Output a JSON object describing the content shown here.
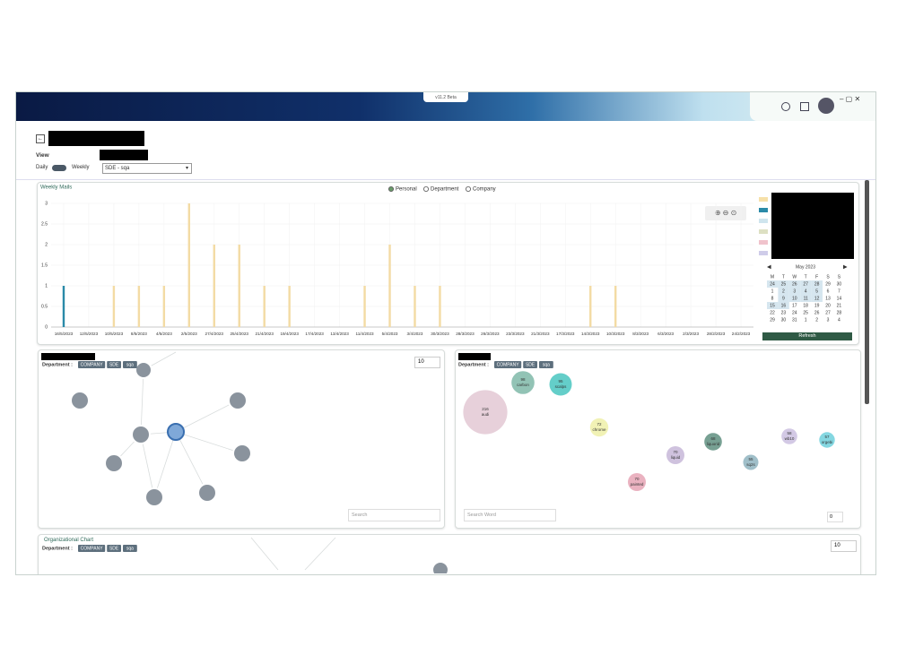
{
  "window": {
    "version": "v11.2 Beta"
  },
  "view": {
    "label": "View",
    "daily": "Daily",
    "weekly": "Weekly",
    "selected": "SDE - sqa"
  },
  "chart_data": {
    "type": "bar",
    "title": "Weekly Mails",
    "options": [
      "Personal",
      "Department",
      "Company"
    ],
    "categories": [
      "16/5/2023",
      "12/5/2023",
      "10/5/2023",
      "8/5/2023",
      "4/5/2023",
      "2/5/2023",
      "27/4/2023",
      "25/4/2023",
      "21/4/2023",
      "19/4/2023",
      "17/4/2023",
      "13/4/2023",
      "11/4/2023",
      "5/4/2023",
      "3/4/2023",
      "30/3/2023",
      "28/3/2023",
      "26/3/2023",
      "23/3/2023",
      "21/3/2023",
      "17/3/2023",
      "14/3/2023",
      "10/3/2023",
      "8/3/2023",
      "6/3/2023",
      "2/3/2023",
      "28/2/2023",
      "24/2/2023"
    ],
    "series": [
      {
        "color": "#2a8aa8",
        "values": [
          1,
          0,
          0,
          0,
          0,
          0,
          0,
          0,
          0,
          0,
          0,
          0,
          0,
          0,
          0,
          0,
          0,
          0,
          0,
          0,
          0,
          0,
          0,
          0,
          0,
          0,
          0,
          0
        ]
      },
      {
        "color": "#f3dba4",
        "values": [
          0,
          0,
          1,
          1,
          1,
          3,
          2,
          2,
          1,
          1,
          0,
          0,
          1,
          2,
          1,
          1,
          0,
          0,
          0,
          0,
          0,
          1,
          1,
          0,
          0,
          0,
          0,
          0
        ]
      }
    ],
    "ylim": [
      0,
      3
    ],
    "yticks": [
      0,
      0.5,
      1,
      1.5,
      2,
      2.5,
      3
    ],
    "grid": true
  },
  "calendar": {
    "month": "May 2023",
    "weekdays": [
      "M",
      "T",
      "W",
      "T",
      "F",
      "S",
      "S"
    ],
    "weeks": [
      [
        "24",
        "25",
        "26",
        "27",
        "28",
        "29",
        "30"
      ],
      [
        "1",
        "2",
        "3",
        "4",
        "5",
        "6",
        "7"
      ],
      [
        "8",
        "9",
        "10",
        "11",
        "12",
        "13",
        "14"
      ],
      [
        "15",
        "16",
        "17",
        "18",
        "19",
        "20",
        "21"
      ],
      [
        "22",
        "23",
        "24",
        "25",
        "26",
        "27",
        "28"
      ],
      [
        "29",
        "30",
        "31",
        "1",
        "2",
        "3",
        "4"
      ]
    ],
    "button": "Refresh"
  },
  "filters": {
    "label": "Department :",
    "tags": [
      "COMPANY",
      "SDE",
      "sqa"
    ]
  },
  "network": {
    "page_size": "10",
    "search": "Search"
  },
  "word_cloud": {
    "words": [
      {
        "word": "audi",
        "count": 216
      },
      {
        "word": "carbon",
        "count": 98
      },
      {
        "word": "scalps",
        "count": 95
      },
      {
        "word": "chrome",
        "count": 72
      },
      {
        "word": "liquid",
        "count": 70
      },
      {
        "word": "liquorid",
        "count": 68
      },
      {
        "word": "sq2s",
        "count": 55
      },
      {
        "word": "wb10",
        "count": 58
      },
      {
        "word": "orgebi",
        "count": 57
      },
      {
        "word": "painted",
        "count": 70
      }
    ],
    "search": "Search Word",
    "count": "0"
  },
  "org_chart": {
    "title": "Organizational Chart",
    "page_size": "10"
  }
}
